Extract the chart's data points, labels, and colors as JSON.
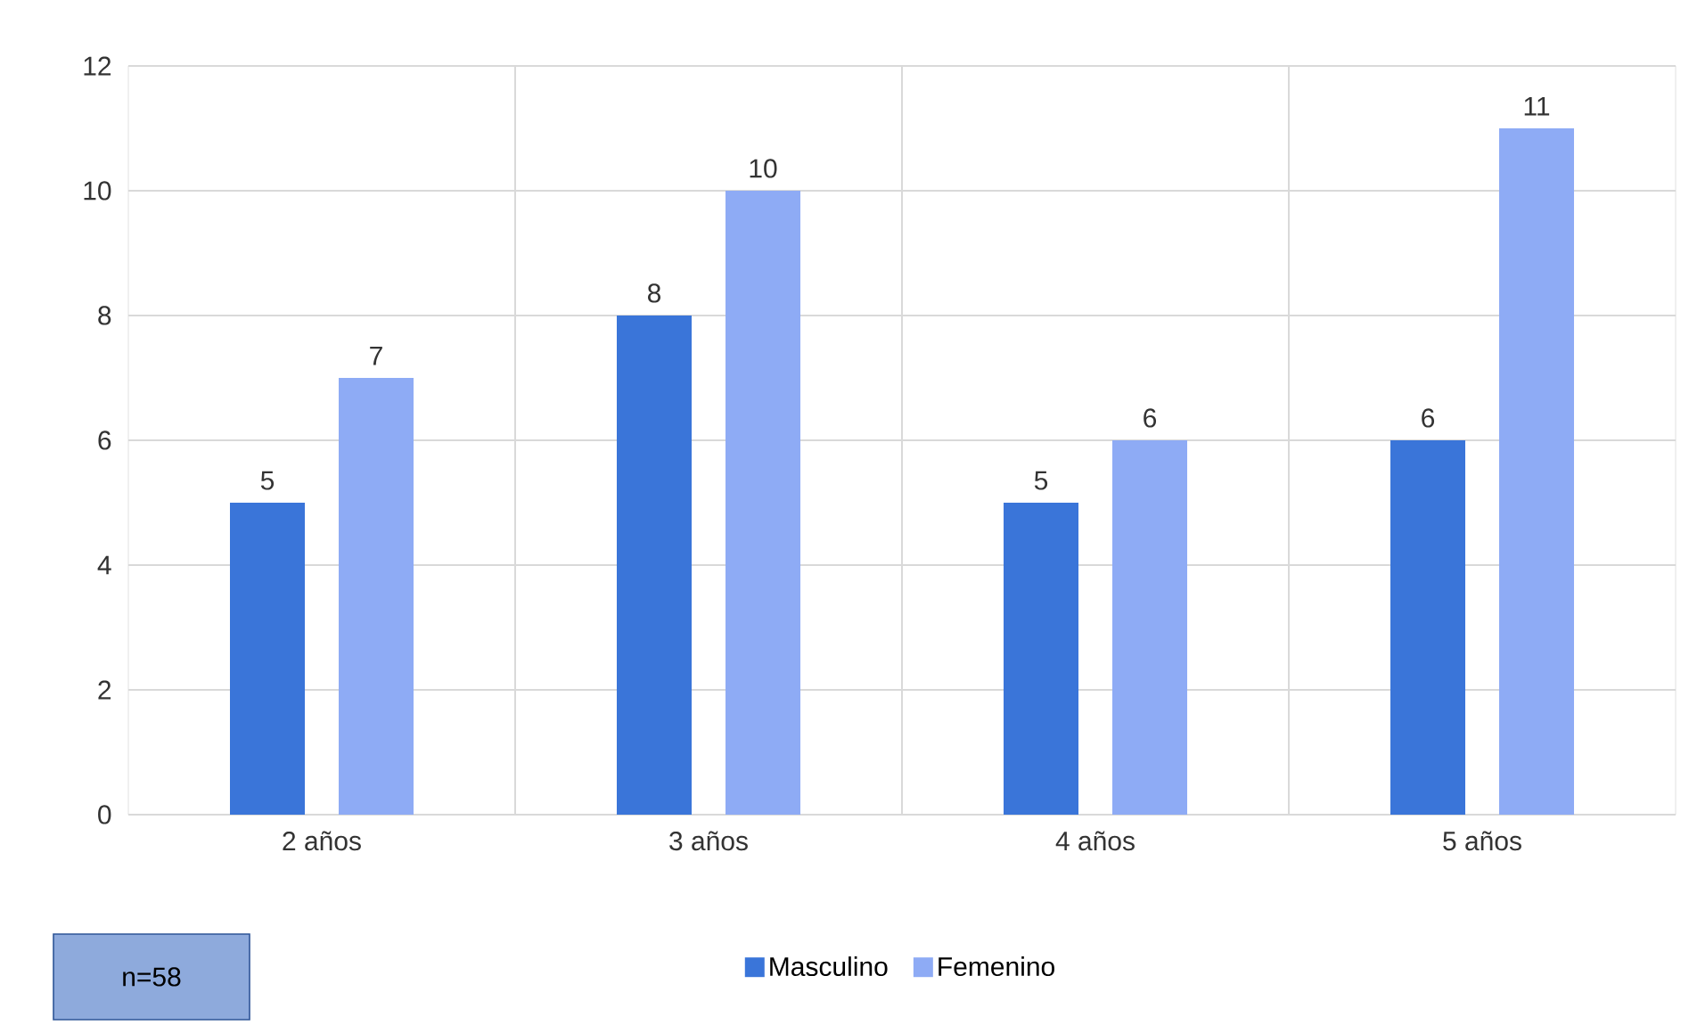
{
  "chart_data": {
    "type": "bar",
    "categories": [
      "2 años",
      "3 años",
      "4 años",
      "5 años"
    ],
    "series": [
      {
        "name": "Masculino",
        "color": "#3a75d9",
        "values": [
          5,
          8,
          5,
          6
        ]
      },
      {
        "name": "Femenino",
        "color": "#8eabf5",
        "values": [
          7,
          10,
          6,
          11
        ]
      }
    ],
    "ylim": [
      0,
      12
    ],
    "yticks": [
      0,
      2,
      4,
      6,
      8,
      10,
      12
    ],
    "grid": true,
    "data_labels": true,
    "legend": "bottom",
    "annotations": [
      "n=58"
    ]
  }
}
